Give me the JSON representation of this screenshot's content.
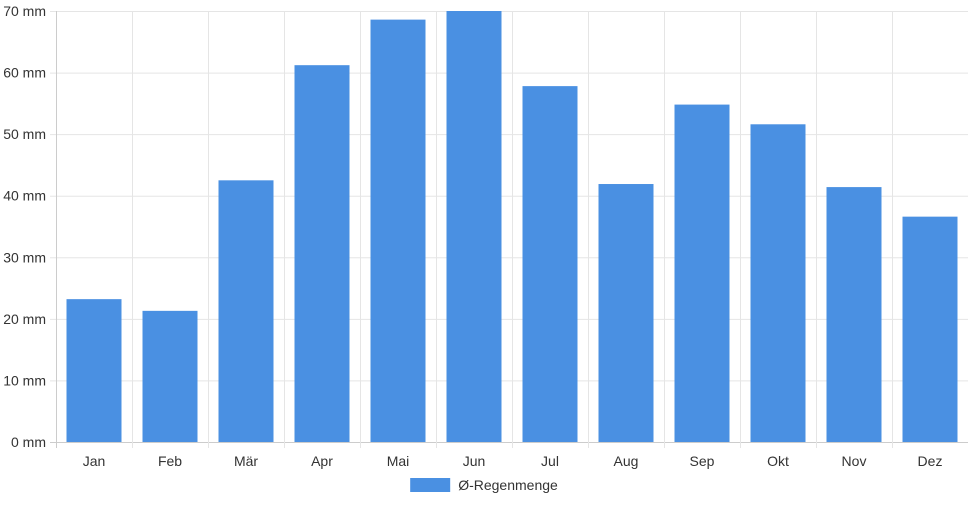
{
  "chart_data": {
    "type": "bar",
    "categories": [
      "Jan",
      "Feb",
      "Mär",
      "Apr",
      "Mai",
      "Jun",
      "Jul",
      "Aug",
      "Sep",
      "Okt",
      "Nov",
      "Dez"
    ],
    "series": [
      {
        "name": "Ø-Regenmenge",
        "values": [
          23.2,
          21.3,
          42.5,
          61.2,
          68.6,
          70.0,
          57.8,
          41.9,
          54.8,
          51.6,
          41.4,
          36.6
        ]
      }
    ],
    "y_ticks": [
      "0 mm",
      "10 mm",
      "20 mm",
      "30 mm",
      "40 mm",
      "50 mm",
      "60 mm",
      "70 mm"
    ],
    "ylim": [
      0,
      70
    ],
    "y_unit": "mm",
    "grid": true,
    "legend_position": "bottom-center",
    "colors": {
      "bar": "#4a90e2",
      "grid": "#e5e5e5",
      "axis": "#cccccc",
      "text": "#333333"
    }
  }
}
